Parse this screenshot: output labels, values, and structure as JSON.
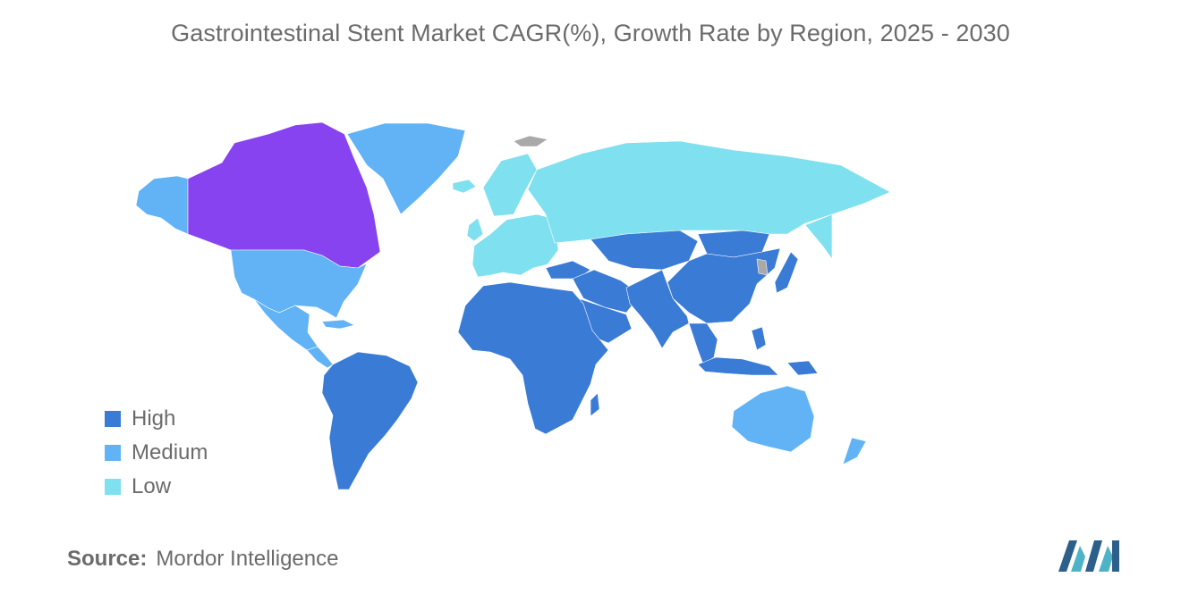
{
  "title": "Gastrointestinal Stent Market CAGR(%), Growth Rate by Region, 2025 - 2030",
  "legend": [
    {
      "label": "High",
      "color": "#3a7bd5"
    },
    {
      "label": "Medium",
      "color": "#61b3f5"
    },
    {
      "label": "Low",
      "color": "#7fe0ef"
    }
  ],
  "colors": {
    "high": "#3a7bd5",
    "medium": "#61b3f5",
    "low": "#7fe0ef",
    "highlight": "#8743f0",
    "no_data": "#a9a9a9"
  },
  "regions": {
    "canada": "highlight",
    "usa": "medium",
    "alaska": "medium",
    "greenland": "medium",
    "mexico": "medium",
    "central-america": "medium",
    "caribbean": "medium",
    "south-america": "high",
    "africa": "high",
    "madagascar": "high",
    "middle-east": "high",
    "arabian-peninsula": "high",
    "turkey": "high",
    "central-asia": "high",
    "south-asia": "high",
    "china": "high",
    "mongolia": "high",
    "southeast-asia": "high",
    "indonesia": "high",
    "philippines": "high",
    "papua-new-guinea": "high",
    "japan": "high",
    "korea": "no_data",
    "europe": "low",
    "scandinavia": "low",
    "iceland": "low",
    "uk": "low",
    "russia": "low",
    "russia-far-east": "low",
    "svalbard": "no_data",
    "australia": "medium",
    "new-zealand": "medium"
  },
  "source": {
    "label": "Source:",
    "value": "Mordor Intelligence"
  }
}
